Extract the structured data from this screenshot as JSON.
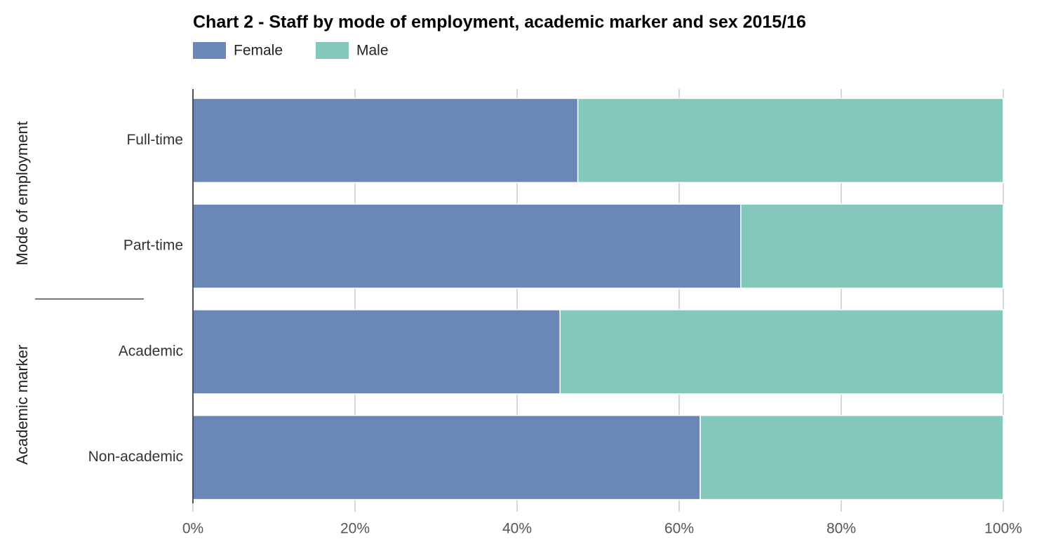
{
  "chart_data": {
    "type": "stacked-bar-horizontal",
    "title": "Chart 2 - Staff by mode of employment, academic marker and sex 2015/16",
    "groups": [
      {
        "name": "Mode of employment",
        "categories": [
          "Full-time",
          "Part-time"
        ]
      },
      {
        "name": "Academic marker",
        "categories": [
          "Academic",
          "Non-academic"
        ]
      }
    ],
    "series": [
      {
        "name": "Female",
        "color": "#6a87b8",
        "values": [
          47.5,
          67.6,
          45.3,
          62.6
        ]
      },
      {
        "name": "Male",
        "color": "#84c7bb",
        "values": [
          52.5,
          32.4,
          54.7,
          37.4
        ]
      }
    ],
    "xlim": [
      0,
      100
    ],
    "xticks": [
      {
        "value": 0,
        "label": "0%"
      },
      {
        "value": 20,
        "label": "20%"
      },
      {
        "value": 40,
        "label": "40%"
      },
      {
        "value": 60,
        "label": "60%"
      },
      {
        "value": 80,
        "label": "80%"
      },
      {
        "value": 100,
        "label": "100%"
      }
    ],
    "grid": true
  }
}
